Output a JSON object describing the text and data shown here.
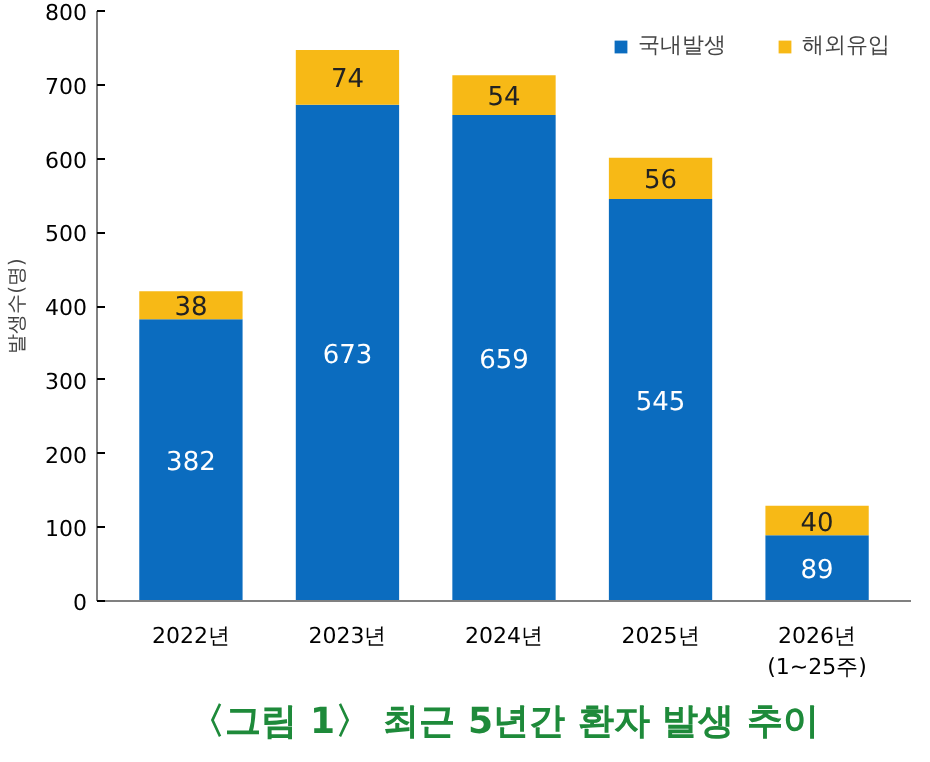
{
  "chart_data": {
    "type": "bar",
    "stacked": true,
    "title": "〈그림 1〉 최근 5년간 환자 발생 추이",
    "ylabel": "발생수(명)",
    "categories": [
      "2022년",
      "2023년",
      "2024년",
      "2025년",
      "2026년\n(1~25주)"
    ],
    "series": [
      {
        "name": "국내발생",
        "color": "#0b6cbf",
        "values": [
          382,
          673,
          659,
          545,
          89
        ]
      },
      {
        "name": "해외유입",
        "color": "#f7b916",
        "values": [
          38,
          74,
          54,
          56,
          40
        ]
      }
    ],
    "ylim": [
      0,
      800
    ],
    "yticks": [
      0,
      100,
      200,
      300,
      400,
      500,
      600,
      700,
      800
    ],
    "data_labels": true,
    "grid": false,
    "legend": "top right"
  }
}
